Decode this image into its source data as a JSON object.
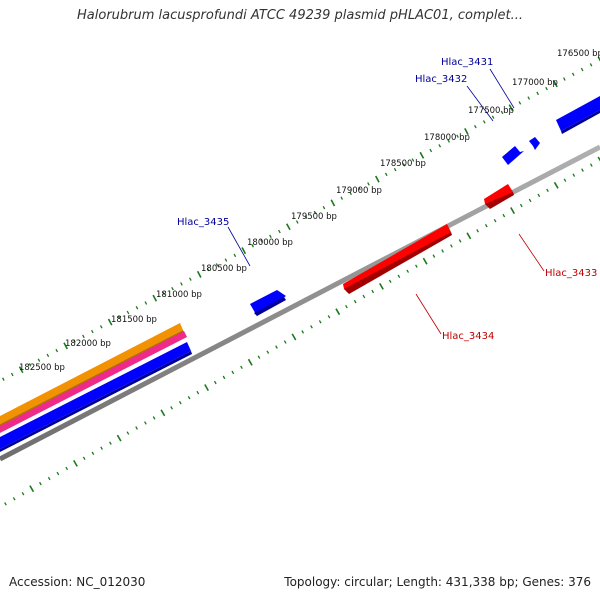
{
  "header": {
    "title": "Halorubrum lacusprofundi ATCC 49239 plasmid pHLAC01, complet..."
  },
  "footer": {
    "accession": "Accession: NC_012030",
    "summary": "Topology: circular; Length: 431,338 bp; Genes: 376"
  },
  "colors": {
    "forward_gene": "#0000ff",
    "reverse_gene": "#ff0000",
    "ticks": "#1a7a1a",
    "backbone": "#808080",
    "label_forward": "#00009a",
    "label_reverse": "#c00000",
    "band_orange": "#f39200",
    "band_magenta": "#ee2a8a"
  },
  "ticks": [
    {
      "label": "176500 bp"
    },
    {
      "label": "177000 bp"
    },
    {
      "label": "177500 bp"
    },
    {
      "label": "178000 bp"
    },
    {
      "label": "178500 bp"
    },
    {
      "label": "179000 bp"
    },
    {
      "label": "179500 bp"
    },
    {
      "label": "180000 bp"
    },
    {
      "label": "180500 bp"
    },
    {
      "label": "181000 bp"
    },
    {
      "label": "181500 bp"
    },
    {
      "label": "182000 bp"
    },
    {
      "label": "182500 bp"
    }
  ],
  "genes": [
    {
      "label": "Hlac_3431",
      "strand": "forward"
    },
    {
      "label": "Hlac_3432",
      "strand": "forward"
    },
    {
      "label": "Hlac_3433",
      "strand": "reverse"
    },
    {
      "label": "Hlac_3434",
      "strand": "reverse"
    },
    {
      "label": "Hlac_3435",
      "strand": "forward"
    }
  ]
}
